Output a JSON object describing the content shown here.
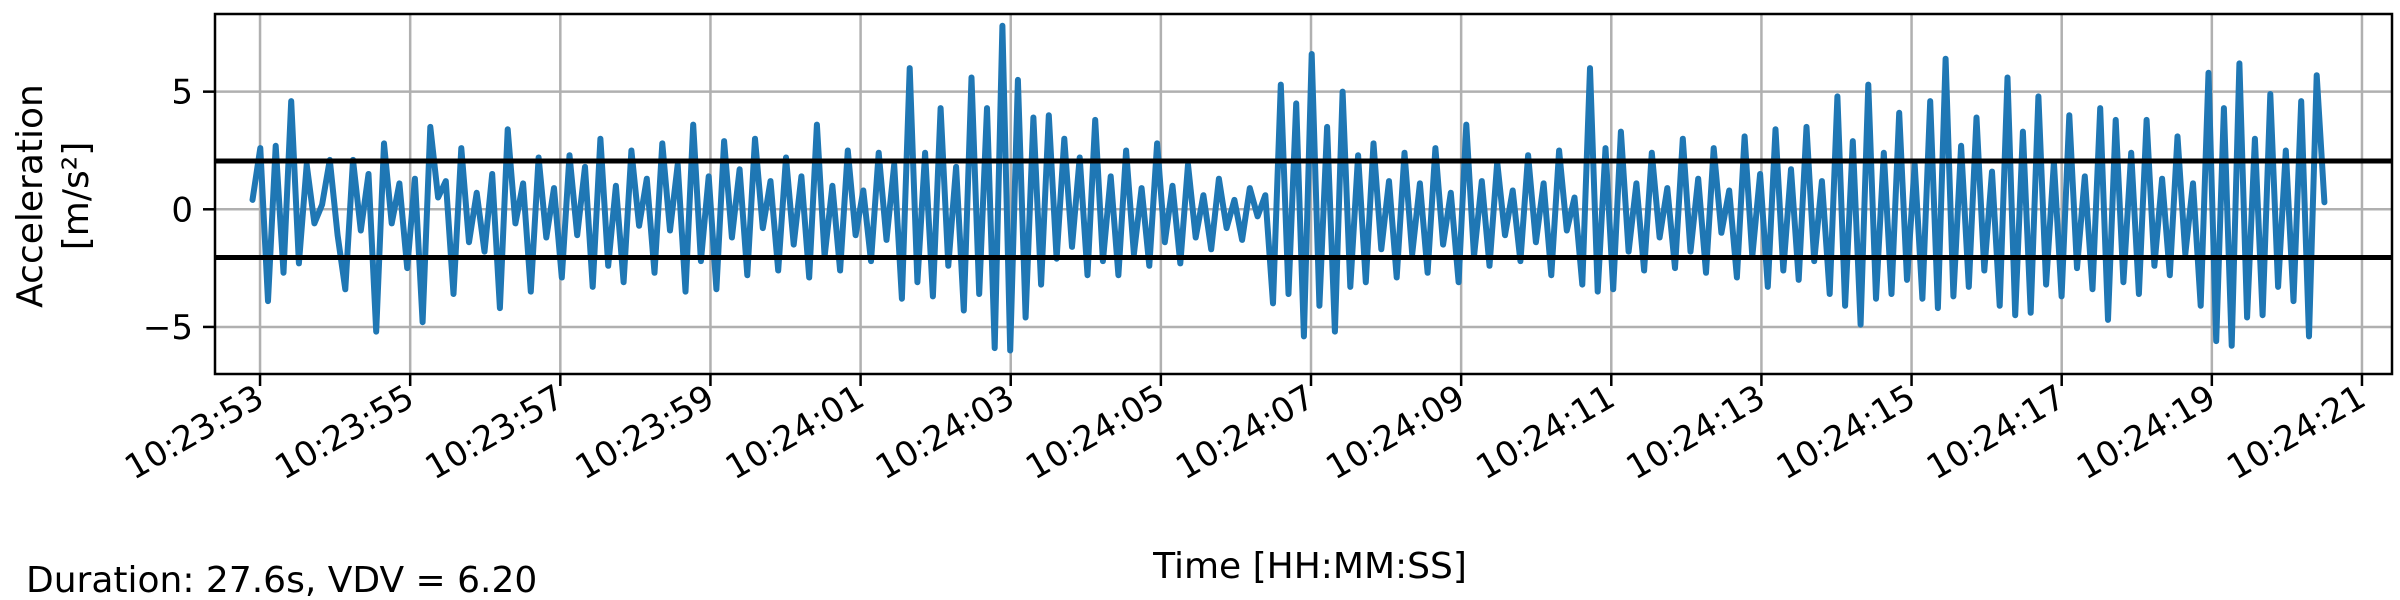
{
  "chart_data": {
    "type": "line",
    "xlabel": "Time [HH:MM:SS]",
    "ylabel_line1": "Acceleration",
    "ylabel_line2": "[m/s²]",
    "x_start": "10:23:52.900",
    "x_end": "10:24:20.500",
    "ylim": [
      -7,
      8.3
    ],
    "xlim": [
      "10:23:52.40",
      "10:24:21.40"
    ],
    "y_ticks": [
      {
        "value": 5,
        "label": "5"
      },
      {
        "value": 0,
        "label": "0"
      },
      {
        "value": -5,
        "label": "−5"
      }
    ],
    "x_ticks": [
      "10:23:53",
      "10:23:55",
      "10:23:57",
      "10:23:59",
      "10:24:01",
      "10:24:03",
      "10:24:05",
      "10:24:07",
      "10:24:09",
      "10:24:11",
      "10:24:13",
      "10:24:15",
      "10:24:17",
      "10:24:19",
      "10:24:21"
    ],
    "grid": true,
    "series": [
      {
        "color": "#1f77b4",
        "sample_step_s": 0.05,
        "values": [
          0.4,
          2.6,
          -3.9,
          2.7,
          -2.7,
          4.6,
          -2.3,
          1.9,
          -0.6,
          0.2,
          2.1,
          -1.1,
          -3.4,
          2.1,
          -0.9,
          1.5,
          -5.2,
          2.8,
          -0.6,
          1.1,
          -2.5,
          1.3,
          -4.8,
          3.5,
          0.5,
          1.2,
          -3.6,
          2.6,
          -1.4,
          0.7,
          -1.8,
          1.5,
          -4.2,
          3.4,
          -0.6,
          1.1,
          -3.5,
          2.2,
          -1.2,
          0.9,
          -2.9,
          2.3,
          -1.1,
          1.8,
          -3.3,
          3.0,
          -2.4,
          1.0,
          -3.1,
          2.5,
          -0.7,
          1.3,
          -2.7,
          2.8,
          -0.9,
          1.9,
          -3.5,
          3.6,
          -2.2,
          1.4,
          -3.4,
          2.9,
          -1.2,
          1.7,
          -2.8,
          3.0,
          -0.8,
          1.2,
          -2.6,
          2.2,
          -1.5,
          1.4,
          -2.9,
          3.6,
          -2.0,
          1.0,
          -2.6,
          2.5,
          -1.1,
          0.8,
          -2.2,
          2.4,
          -1.3,
          1.9,
          -3.8,
          6.0,
          -3.1,
          2.4,
          -3.7,
          4.3,
          -2.4,
          1.8,
          -4.3,
          5.6,
          -3.6,
          4.3,
          -5.9,
          7.8,
          -6.0,
          5.5,
          -4.6,
          3.9,
          -3.2,
          4.0,
          -2.1,
          3.0,
          -1.6,
          2.2,
          -2.8,
          3.8,
          -2.2,
          1.4,
          -2.8,
          2.5,
          -1.9,
          0.9,
          -2.4,
          2.8,
          -1.4,
          1.0,
          -2.3,
          1.9,
          -1.2,
          0.6,
          -1.7,
          1.3,
          -0.8,
          0.4,
          -1.3,
          0.9,
          -0.3,
          0.6,
          -4.0,
          5.3,
          -3.6,
          4.5,
          -5.4,
          6.6,
          -4.1,
          3.5,
          -5.2,
          5.0,
          -3.3,
          2.3,
          -3.1,
          2.8,
          -1.7,
          1.2,
          -2.9,
          2.4,
          -1.9,
          1.1,
          -2.7,
          2.6,
          -1.5,
          0.7,
          -3.1,
          3.6,
          -2.0,
          1.2,
          -2.4,
          2.0,
          -1.1,
          0.8,
          -2.2,
          2.3,
          -1.4,
          1.1,
          -2.8,
          2.5,
          -0.9,
          0.5,
          -3.2,
          6.0,
          -3.5,
          2.6,
          -3.4,
          3.3,
          -1.8,
          1.1,
          -2.6,
          2.4,
          -1.2,
          0.9,
          -2.5,
          3.0,
          -1.8,
          1.3,
          -2.7,
          2.6,
          -1.0,
          0.8,
          -2.9,
          3.1,
          -2.0,
          1.5,
          -3.3,
          3.4,
          -2.6,
          1.7,
          -3.0,
          3.5,
          -2.2,
          1.2,
          -3.6,
          4.8,
          -4.1,
          2.9,
          -4.9,
          5.3,
          -3.8,
          2.4,
          -3.6,
          4.1,
          -3.0,
          1.9,
          -3.8,
          4.6,
          -4.2,
          6.4,
          -3.7,
          2.7,
          -3.3,
          3.9,
          -2.6,
          1.6,
          -4.1,
          5.6,
          -4.5,
          3.3,
          -4.4,
          4.8,
          -3.2,
          2.0,
          -3.7,
          4.0,
          -2.5,
          1.4,
          -3.4,
          4.3,
          -4.7,
          3.8,
          -3.1,
          2.4,
          -3.6,
          3.8,
          -2.4,
          1.3,
          -2.8,
          3.1,
          -1.9,
          1.1,
          -4.1,
          5.8,
          -5.6,
          4.3,
          -5.8,
          6.2,
          -4.6,
          3.0,
          -4.5,
          4.9,
          -3.3,
          2.5,
          -3.9,
          4.6,
          -5.4,
          5.7,
          0.3
        ]
      }
    ],
    "reference_lines": [
      {
        "y": 2.05,
        "color": "#000000"
      },
      {
        "y": -2.05,
        "color": "#000000"
      }
    ]
  },
  "footnote": "Duration: 27.6s, VDV = 6.20"
}
